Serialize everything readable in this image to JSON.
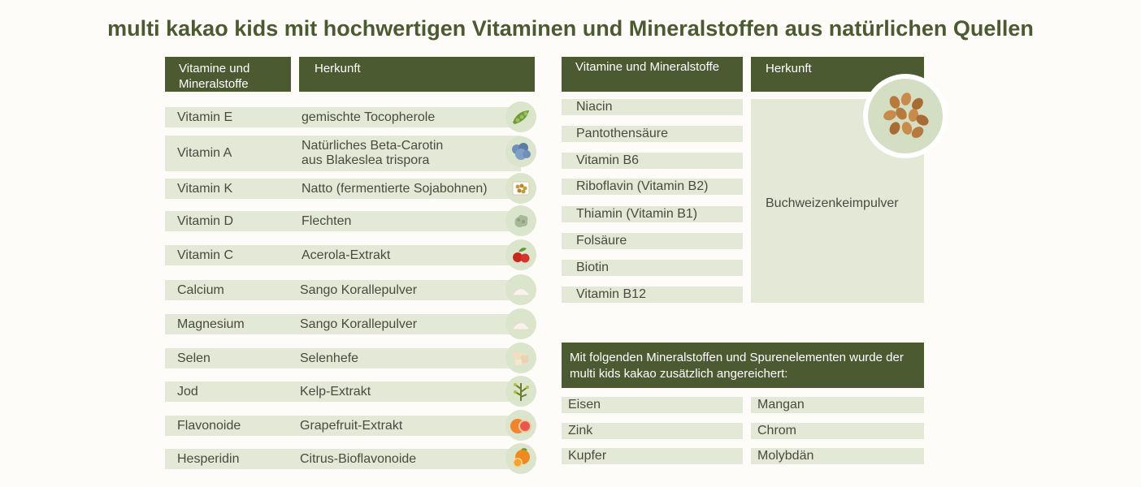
{
  "title": "multi kakao kids mit hochwertigen Vitaminen und Mineralstoffen aus natürlichen Quellen",
  "left_table": {
    "header_col1": "Vitamine und Mineralstoffe",
    "header_col2": "Herkunft",
    "rows": [
      {
        "name": "Vitamin E",
        "source": "gemischte Tocopherole",
        "icon": "soybean-icon"
      },
      {
        "name": "Vitamin A",
        "source": "Natürliches Beta-Carotin aus Blakeslea trispora",
        "icon": "fungus-icon"
      },
      {
        "name": "Vitamin K",
        "source": "Natto (fermentierte Sojabohnen)",
        "icon": "natto-icon"
      },
      {
        "name": "Vitamin D",
        "source": "Flechten",
        "icon": "lichen-icon"
      },
      {
        "name": "Vitamin C",
        "source": "Acerola-Extrakt",
        "icon": "acerola-icon"
      },
      {
        "name": "Calcium",
        "source": "Sango Korallepulver",
        "icon": "powder-icon"
      },
      {
        "name": "Magnesium",
        "source": "Sango Korallepulver",
        "icon": "powder-icon"
      },
      {
        "name": "Selen",
        "source": "Selenhefe",
        "icon": "yeast-icon"
      },
      {
        "name": "Jod",
        "source": "Kelp-Extrakt",
        "icon": "kelp-icon"
      },
      {
        "name": "Flavonoide",
        "source": "Grapefruit-Extrakt",
        "icon": "grapefruit-icon"
      },
      {
        "name": "Hesperidin",
        "source": "Citrus-Bioflavonoide",
        "icon": "orange-icon"
      }
    ]
  },
  "right_table": {
    "header_col1": "Vitamine und Mineralstoffe",
    "header_col2": "Herkunft",
    "rows": [
      "Niacin",
      "Pantothensäure",
      "Vitamin B6",
      "Riboflavin (Vitamin B2)",
      "Thiamin (Vitamin B1)",
      "Folsäure",
      "Biotin",
      "Vitamin B12"
    ],
    "source": "Buchweizenkeimpulver",
    "source_icon": "buckwheat-icon"
  },
  "minerals": {
    "note": "Mit folgenden Mineralstoffen und Spurenelementen wurde der multi kids kakao zusätzlich angereichert:",
    "items": [
      "Eisen",
      "Mangan",
      "Zink",
      "Chrom",
      "Kupfer",
      "Molybdän"
    ]
  },
  "colors": {
    "accent": "#4b5a31",
    "row_bg": "#e3e9d6",
    "background": "#fdfcf8"
  }
}
